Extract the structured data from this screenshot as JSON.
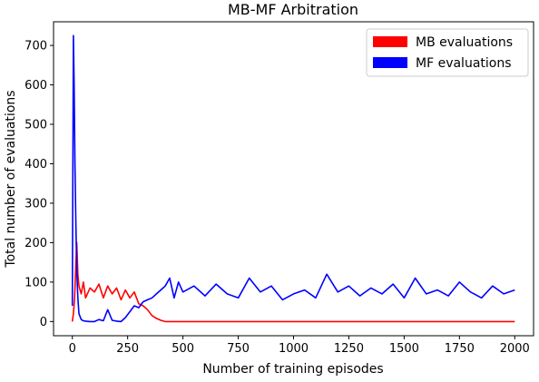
{
  "chart_data": {
    "type": "line",
    "title": "MB-MF Arbitration",
    "xlabel": "Number of training episodes",
    "ylabel": "Total number of evaluations",
    "xlim": [
      -85,
      2085
    ],
    "ylim": [
      -36,
      760
    ],
    "xticks": [
      0,
      250,
      500,
      750,
      1000,
      1250,
      1500,
      1750,
      2000
    ],
    "yticks": [
      0,
      100,
      200,
      300,
      400,
      500,
      600,
      700
    ],
    "grid": false,
    "legend": {
      "position": "top-right"
    },
    "series": [
      {
        "name": "MB evaluations",
        "color": "#ff0000",
        "x": [
          0,
          5,
          10,
          15,
          20,
          25,
          30,
          40,
          50,
          60,
          80,
          100,
          120,
          140,
          160,
          180,
          200,
          220,
          240,
          260,
          280,
          300,
          320,
          340,
          360,
          380,
          400,
          420,
          450,
          500,
          750,
          1000,
          1250,
          1500,
          1750,
          2000
        ],
        "y": [
          0,
          20,
          60,
          130,
          200,
          120,
          90,
          70,
          100,
          60,
          85,
          75,
          95,
          60,
          90,
          70,
          85,
          55,
          80,
          60,
          75,
          45,
          40,
          30,
          15,
          8,
          3,
          0,
          0,
          0,
          0,
          0,
          0,
          0,
          0,
          0
        ]
      },
      {
        "name": "MF evaluations",
        "color": "#0000ff",
        "x": [
          0,
          5,
          8,
          12,
          16,
          20,
          25,
          30,
          40,
          50,
          60,
          80,
          100,
          120,
          140,
          160,
          180,
          200,
          220,
          240,
          260,
          280,
          300,
          320,
          340,
          360,
          380,
          400,
          420,
          440,
          460,
          480,
          500,
          550,
          600,
          650,
          700,
          750,
          800,
          850,
          900,
          950,
          1000,
          1050,
          1100,
          1150,
          1200,
          1250,
          1300,
          1350,
          1400,
          1450,
          1500,
          1550,
          1600,
          1650,
          1700,
          1750,
          1800,
          1850,
          1900,
          1950,
          2000
        ],
        "y": [
          40,
          725,
          600,
          400,
          250,
          130,
          60,
          20,
          5,
          2,
          1,
          0,
          0,
          5,
          2,
          30,
          3,
          1,
          0,
          10,
          25,
          40,
          35,
          50,
          55,
          60,
          70,
          80,
          90,
          110,
          60,
          100,
          75,
          90,
          65,
          95,
          70,
          60,
          110,
          75,
          90,
          55,
          70,
          80,
          60,
          120,
          75,
          90,
          65,
          85,
          70,
          95,
          60,
          110,
          70,
          80,
          65,
          100,
          75,
          60,
          90,
          70,
          80
        ]
      }
    ]
  }
}
